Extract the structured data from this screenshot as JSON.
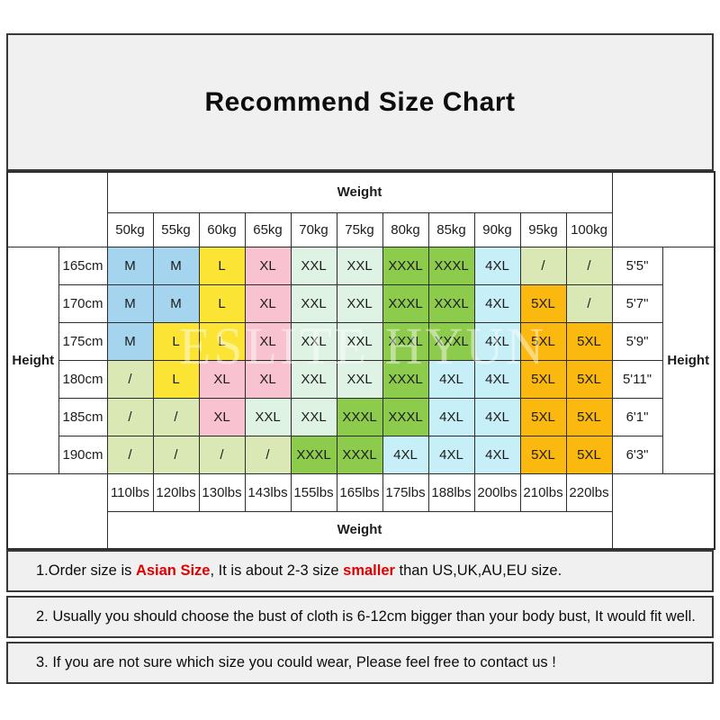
{
  "title": "Recommend Size Chart",
  "watermark": "ESLITE HYUN",
  "size_chart": {
    "weight_label_top": "Weight",
    "weight_label_bottom": "Weight",
    "height_label_left": "Height",
    "height_label_right": "Height",
    "kg_columns": [
      "50kg",
      "55kg",
      "60kg",
      "65kg",
      "70kg",
      "75kg",
      "80kg",
      "85kg",
      "90kg",
      "95kg",
      "100kg"
    ],
    "lbs_columns": [
      "110lbs",
      "120lbs",
      "130lbs",
      "143lbs",
      "155lbs",
      "165lbs",
      "175lbs",
      "188lbs",
      "200lbs",
      "210lbs",
      "220lbs"
    ],
    "rows": [
      {
        "cm": "165cm",
        "ft": "5'5\"",
        "sizes": [
          "M",
          "M",
          "L",
          "XL",
          "XXL",
          "XXL",
          "XXXL",
          "XXXL",
          "4XL",
          "/",
          "/"
        ]
      },
      {
        "cm": "170cm",
        "ft": "5'7\"",
        "sizes": [
          "M",
          "M",
          "L",
          "XL",
          "XXL",
          "XXL",
          "XXXL",
          "XXXL",
          "4XL",
          "5XL",
          "/"
        ]
      },
      {
        "cm": "175cm",
        "ft": "5'9\"",
        "sizes": [
          "M",
          "L",
          "L",
          "XL",
          "XXL",
          "XXL",
          "XXXL",
          "XXXL",
          "4XL",
          "5XL",
          "5XL"
        ]
      },
      {
        "cm": "180cm",
        "ft": "5'11\"",
        "sizes": [
          "/",
          "L",
          "XL",
          "XL",
          "XXL",
          "XXL",
          "XXXL",
          "4XL",
          "4XL",
          "5XL",
          "5XL"
        ]
      },
      {
        "cm": "185cm",
        "ft": "6'1\"",
        "sizes": [
          "/",
          "/",
          "XL",
          "XXL",
          "XXL",
          "XXXL",
          "XXXL",
          "4XL",
          "4XL",
          "5XL",
          "5XL"
        ]
      },
      {
        "cm": "190cm",
        "ft": "6'3\"",
        "sizes": [
          "/",
          "/",
          "/",
          "/",
          "XXXL",
          "XXXL",
          "4XL",
          "4XL",
          "4XL",
          "5XL",
          "5XL"
        ]
      }
    ],
    "size_colors": {
      "M": "#a5d5ee",
      "L": "#fbe433",
      "XL": "#f8c2d0",
      "XXL": "#dff3e5",
      "XXXL": "#8dcb4c",
      "4XL": "#c7eff7",
      "5XL": "#fbb80f",
      "/": "#dae8b6"
    }
  },
  "notes": [
    {
      "parts": [
        {
          "text": "1.Order size is ",
          "red": false
        },
        {
          "text": "Asian Size",
          "red": true
        },
        {
          "text": ", It is about 2-3 size ",
          "red": false
        },
        {
          "text": "smaller",
          "red": true
        },
        {
          "text": " than US,UK,AU,EU size.",
          "red": false
        }
      ]
    },
    {
      "parts": [
        {
          "text": "2. Usually you should choose the bust of cloth is 6-12cm bigger than your body bust, It would fit well.",
          "red": false
        }
      ]
    },
    {
      "parts": [
        {
          "text": "3. If you are not sure which size you could wear, Please feel free to contact us !",
          "red": false
        }
      ]
    }
  ]
}
